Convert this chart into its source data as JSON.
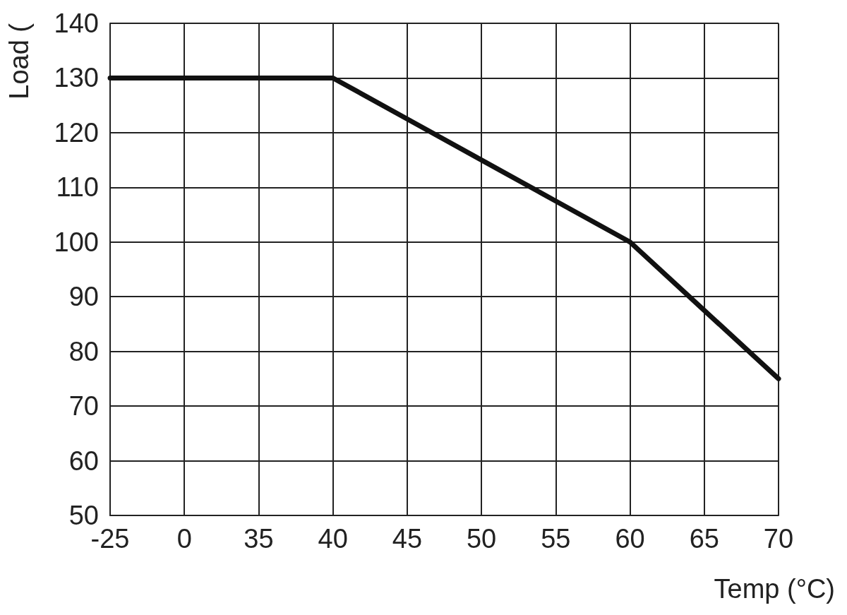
{
  "chart_data": {
    "type": "line",
    "xlabel": "Temp (°C)",
    "ylabel": "Load (",
    "categories": [
      "-25",
      "0",
      "35",
      "40",
      "45",
      "50",
      "55",
      "60",
      "65",
      "70"
    ],
    "series": [
      {
        "color": "#111111",
        "values": [
          130,
          130,
          130,
          130,
          122.5,
          115,
          107.5,
          100,
          87.5,
          75
        ]
      }
    ],
    "ylim": [
      50,
      140
    ],
    "yticks": [
      50,
      60,
      70,
      80,
      90,
      100,
      110,
      120,
      130,
      140
    ],
    "grid": true,
    "marker": "none",
    "line_style": "solid"
  }
}
